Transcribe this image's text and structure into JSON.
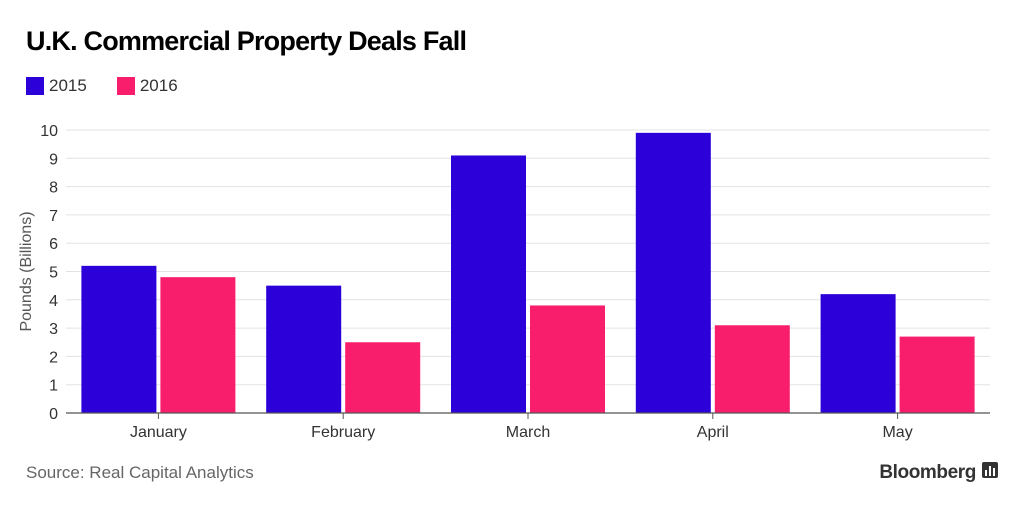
{
  "title": "U.K. Commercial Property Deals Fall",
  "source": "Source: Real Capital Analytics",
  "brand": "Bloomberg",
  "brand_icon": "bloomberg-terminal-icon",
  "chart_data": {
    "type": "bar",
    "title": "U.K. Commercial Property Deals Fall",
    "xlabel": "",
    "ylabel": "Pounds (Billions)",
    "categories": [
      "January",
      "February",
      "March",
      "April",
      "May"
    ],
    "series": [
      {
        "name": "2015",
        "color": "#2b00d9",
        "values": [
          5.2,
          4.5,
          9.1,
          9.9,
          4.2
        ]
      },
      {
        "name": "2016",
        "color": "#f81e6b",
        "values": [
          4.8,
          2.5,
          3.8,
          3.1,
          2.7
        ]
      }
    ],
    "ylim": [
      0,
      10
    ],
    "yticks": [
      "0",
      "1",
      "2",
      "3",
      "4",
      "5",
      "6",
      "7",
      "8",
      "9",
      "10"
    ],
    "grid": true,
    "legend_position": "top-left"
  }
}
